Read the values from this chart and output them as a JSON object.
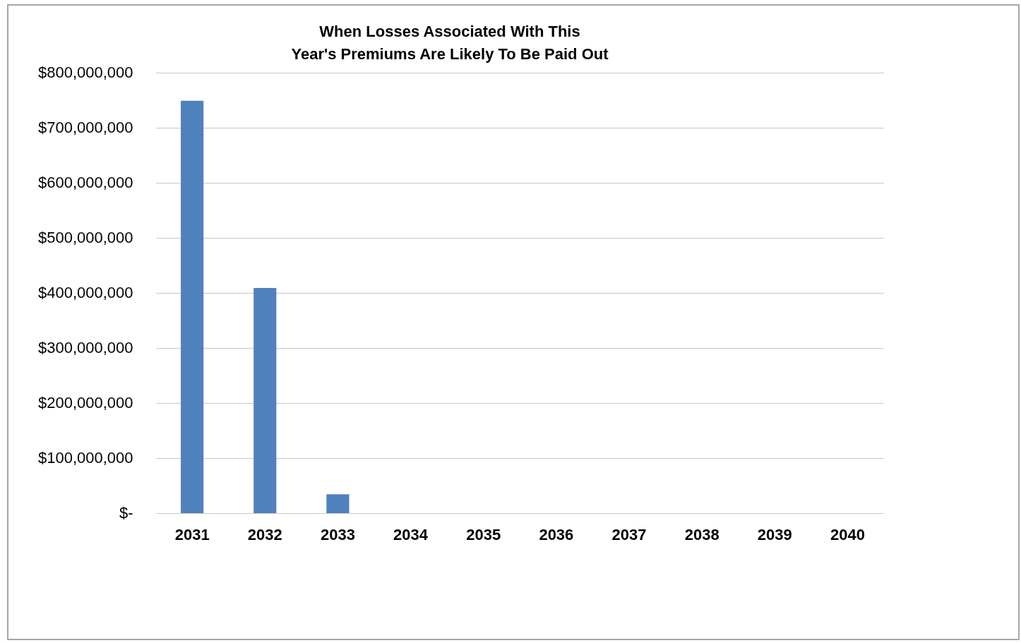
{
  "chart_data": {
    "type": "bar",
    "title": "When Losses Associated With This\nYear's Premiums Are Likely To Be Paid Out",
    "categories": [
      "2031",
      "2032",
      "2033",
      "2034",
      "2035",
      "2036",
      "2037",
      "2038",
      "2039",
      "2040"
    ],
    "values": [
      750000000,
      410000000,
      35000000,
      0,
      0,
      0,
      0,
      0,
      0,
      0
    ],
    "color": "#4f81bd",
    "ylim": [
      0,
      800000000
    ],
    "yticks": [
      {
        "value": 0,
        "label": "$-"
      },
      {
        "value": 100000000,
        "label": "$100,000,000"
      },
      {
        "value": 200000000,
        "label": "$200,000,000"
      },
      {
        "value": 300000000,
        "label": "$300,000,000"
      },
      {
        "value": 400000000,
        "label": "$400,000,000"
      },
      {
        "value": 500000000,
        "label": "$500,000,000"
      },
      {
        "value": 600000000,
        "label": "$600,000,000"
      },
      {
        "value": 700000000,
        "label": "$700,000,000"
      },
      {
        "value": 800000000,
        "label": "$800,000,000"
      }
    ],
    "grid": "y",
    "legend": false
  }
}
